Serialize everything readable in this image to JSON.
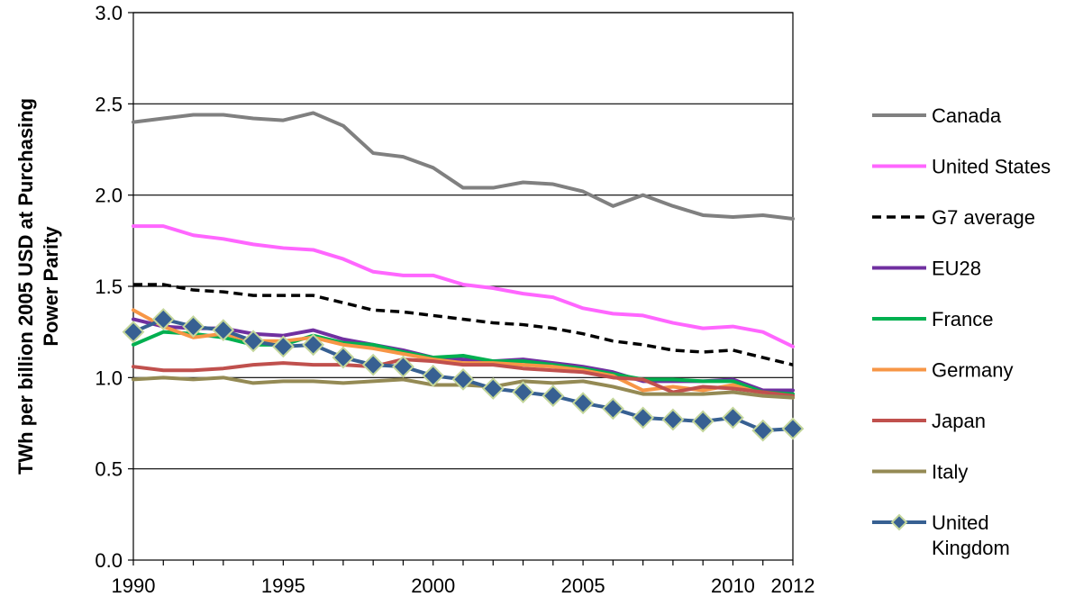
{
  "chart_data": {
    "type": "line",
    "title": "",
    "ylabel": "TWh per billion 2005 USD at Purchasing Power Parity",
    "ylabel_lines": [
      "TWh per billion 2005 USD at Purchasing",
      "Power Parity"
    ],
    "xlabel": "",
    "ylim": [
      0.0,
      3.0
    ],
    "xlim": [
      1990,
      2012
    ],
    "y_ticks": [
      "0.0",
      "0.5",
      "1.0",
      "1.5",
      "2.0",
      "2.5",
      "3.0"
    ],
    "x_ticks": [
      "1990",
      "1995",
      "2000",
      "2005",
      "2010",
      "2012"
    ],
    "grid": "horizontal",
    "legend_position": "right",
    "x": [
      1990,
      1991,
      1992,
      1993,
      1994,
      1995,
      1996,
      1997,
      1998,
      1999,
      2000,
      2001,
      2002,
      2003,
      2004,
      2005,
      2006,
      2007,
      2008,
      2009,
      2010,
      2011,
      2012
    ],
    "series": [
      {
        "name": "Canada",
        "color": "#808080",
        "style": "solid",
        "values": [
          2.4,
          2.42,
          2.44,
          2.44,
          2.42,
          2.41,
          2.45,
          2.38,
          2.23,
          2.21,
          2.15,
          2.04,
          2.04,
          2.07,
          2.06,
          2.02,
          1.94,
          2.0,
          1.94,
          1.89,
          1.88,
          1.89,
          1.87
        ]
      },
      {
        "name": "United States",
        "color": "#ff66ff",
        "style": "solid",
        "values": [
          1.83,
          1.83,
          1.78,
          1.76,
          1.73,
          1.71,
          1.7,
          1.65,
          1.58,
          1.56,
          1.56,
          1.51,
          1.49,
          1.46,
          1.44,
          1.38,
          1.35,
          1.34,
          1.3,
          1.27,
          1.28,
          1.25,
          1.17
        ]
      },
      {
        "name": "G7 average",
        "color": "#000000",
        "style": "dashed",
        "values": [
          1.51,
          1.51,
          1.48,
          1.47,
          1.45,
          1.45,
          1.45,
          1.41,
          1.37,
          1.36,
          1.34,
          1.32,
          1.3,
          1.29,
          1.27,
          1.24,
          1.2,
          1.18,
          1.15,
          1.14,
          1.15,
          1.11,
          1.07
        ]
      },
      {
        "name": "EU28",
        "color": "#7030a0",
        "style": "solid",
        "values": [
          1.32,
          1.28,
          1.27,
          1.27,
          1.24,
          1.23,
          1.26,
          1.21,
          1.18,
          1.15,
          1.11,
          1.1,
          1.09,
          1.1,
          1.08,
          1.06,
          1.03,
          0.98,
          0.98,
          0.98,
          0.99,
          0.93,
          0.93
        ]
      },
      {
        "name": "France",
        "color": "#00b050",
        "style": "solid",
        "values": [
          1.18,
          1.25,
          1.24,
          1.22,
          1.18,
          1.18,
          1.23,
          1.19,
          1.18,
          1.14,
          1.11,
          1.12,
          1.09,
          1.09,
          1.07,
          1.05,
          1.02,
          0.99,
          0.99,
          0.98,
          0.98,
          0.92,
          0.91
        ]
      },
      {
        "name": "Germany",
        "color": "#f79646",
        "style": "solid",
        "values": [
          1.37,
          1.28,
          1.22,
          1.24,
          1.2,
          1.2,
          1.22,
          1.18,
          1.16,
          1.13,
          1.1,
          1.08,
          1.08,
          1.07,
          1.06,
          1.04,
          1.01,
          0.93,
          0.95,
          0.93,
          0.96,
          0.91,
          0.89
        ]
      },
      {
        "name": "Japan",
        "color": "#c0504d",
        "style": "solid",
        "values": [
          1.06,
          1.04,
          1.04,
          1.05,
          1.07,
          1.08,
          1.07,
          1.07,
          1.06,
          1.1,
          1.09,
          1.07,
          1.07,
          1.05,
          1.04,
          1.03,
          1.0,
          0.99,
          0.92,
          0.95,
          0.94,
          0.92,
          0.9
        ]
      },
      {
        "name": "Italy",
        "color": "#948a54",
        "style": "solid",
        "values": [
          0.99,
          1.0,
          0.99,
          1.0,
          0.97,
          0.98,
          0.98,
          0.97,
          0.98,
          0.99,
          0.96,
          0.96,
          0.95,
          0.98,
          0.97,
          0.98,
          0.95,
          0.91,
          0.91,
          0.91,
          0.92,
          0.9,
          0.89
        ]
      },
      {
        "name": "United Kingdom",
        "name_lines": [
          "United",
          "Kingdom"
        ],
        "color": "#376092",
        "marker_fill": "#376092",
        "marker_edge": "#c3d69b",
        "style": "solid-diamond",
        "values": [
          1.25,
          1.32,
          1.28,
          1.26,
          1.2,
          1.17,
          1.18,
          1.11,
          1.07,
          1.06,
          1.01,
          0.99,
          0.94,
          0.92,
          0.9,
          0.86,
          0.83,
          0.78,
          0.77,
          0.76,
          0.78,
          0.71,
          0.72
        ]
      }
    ]
  }
}
